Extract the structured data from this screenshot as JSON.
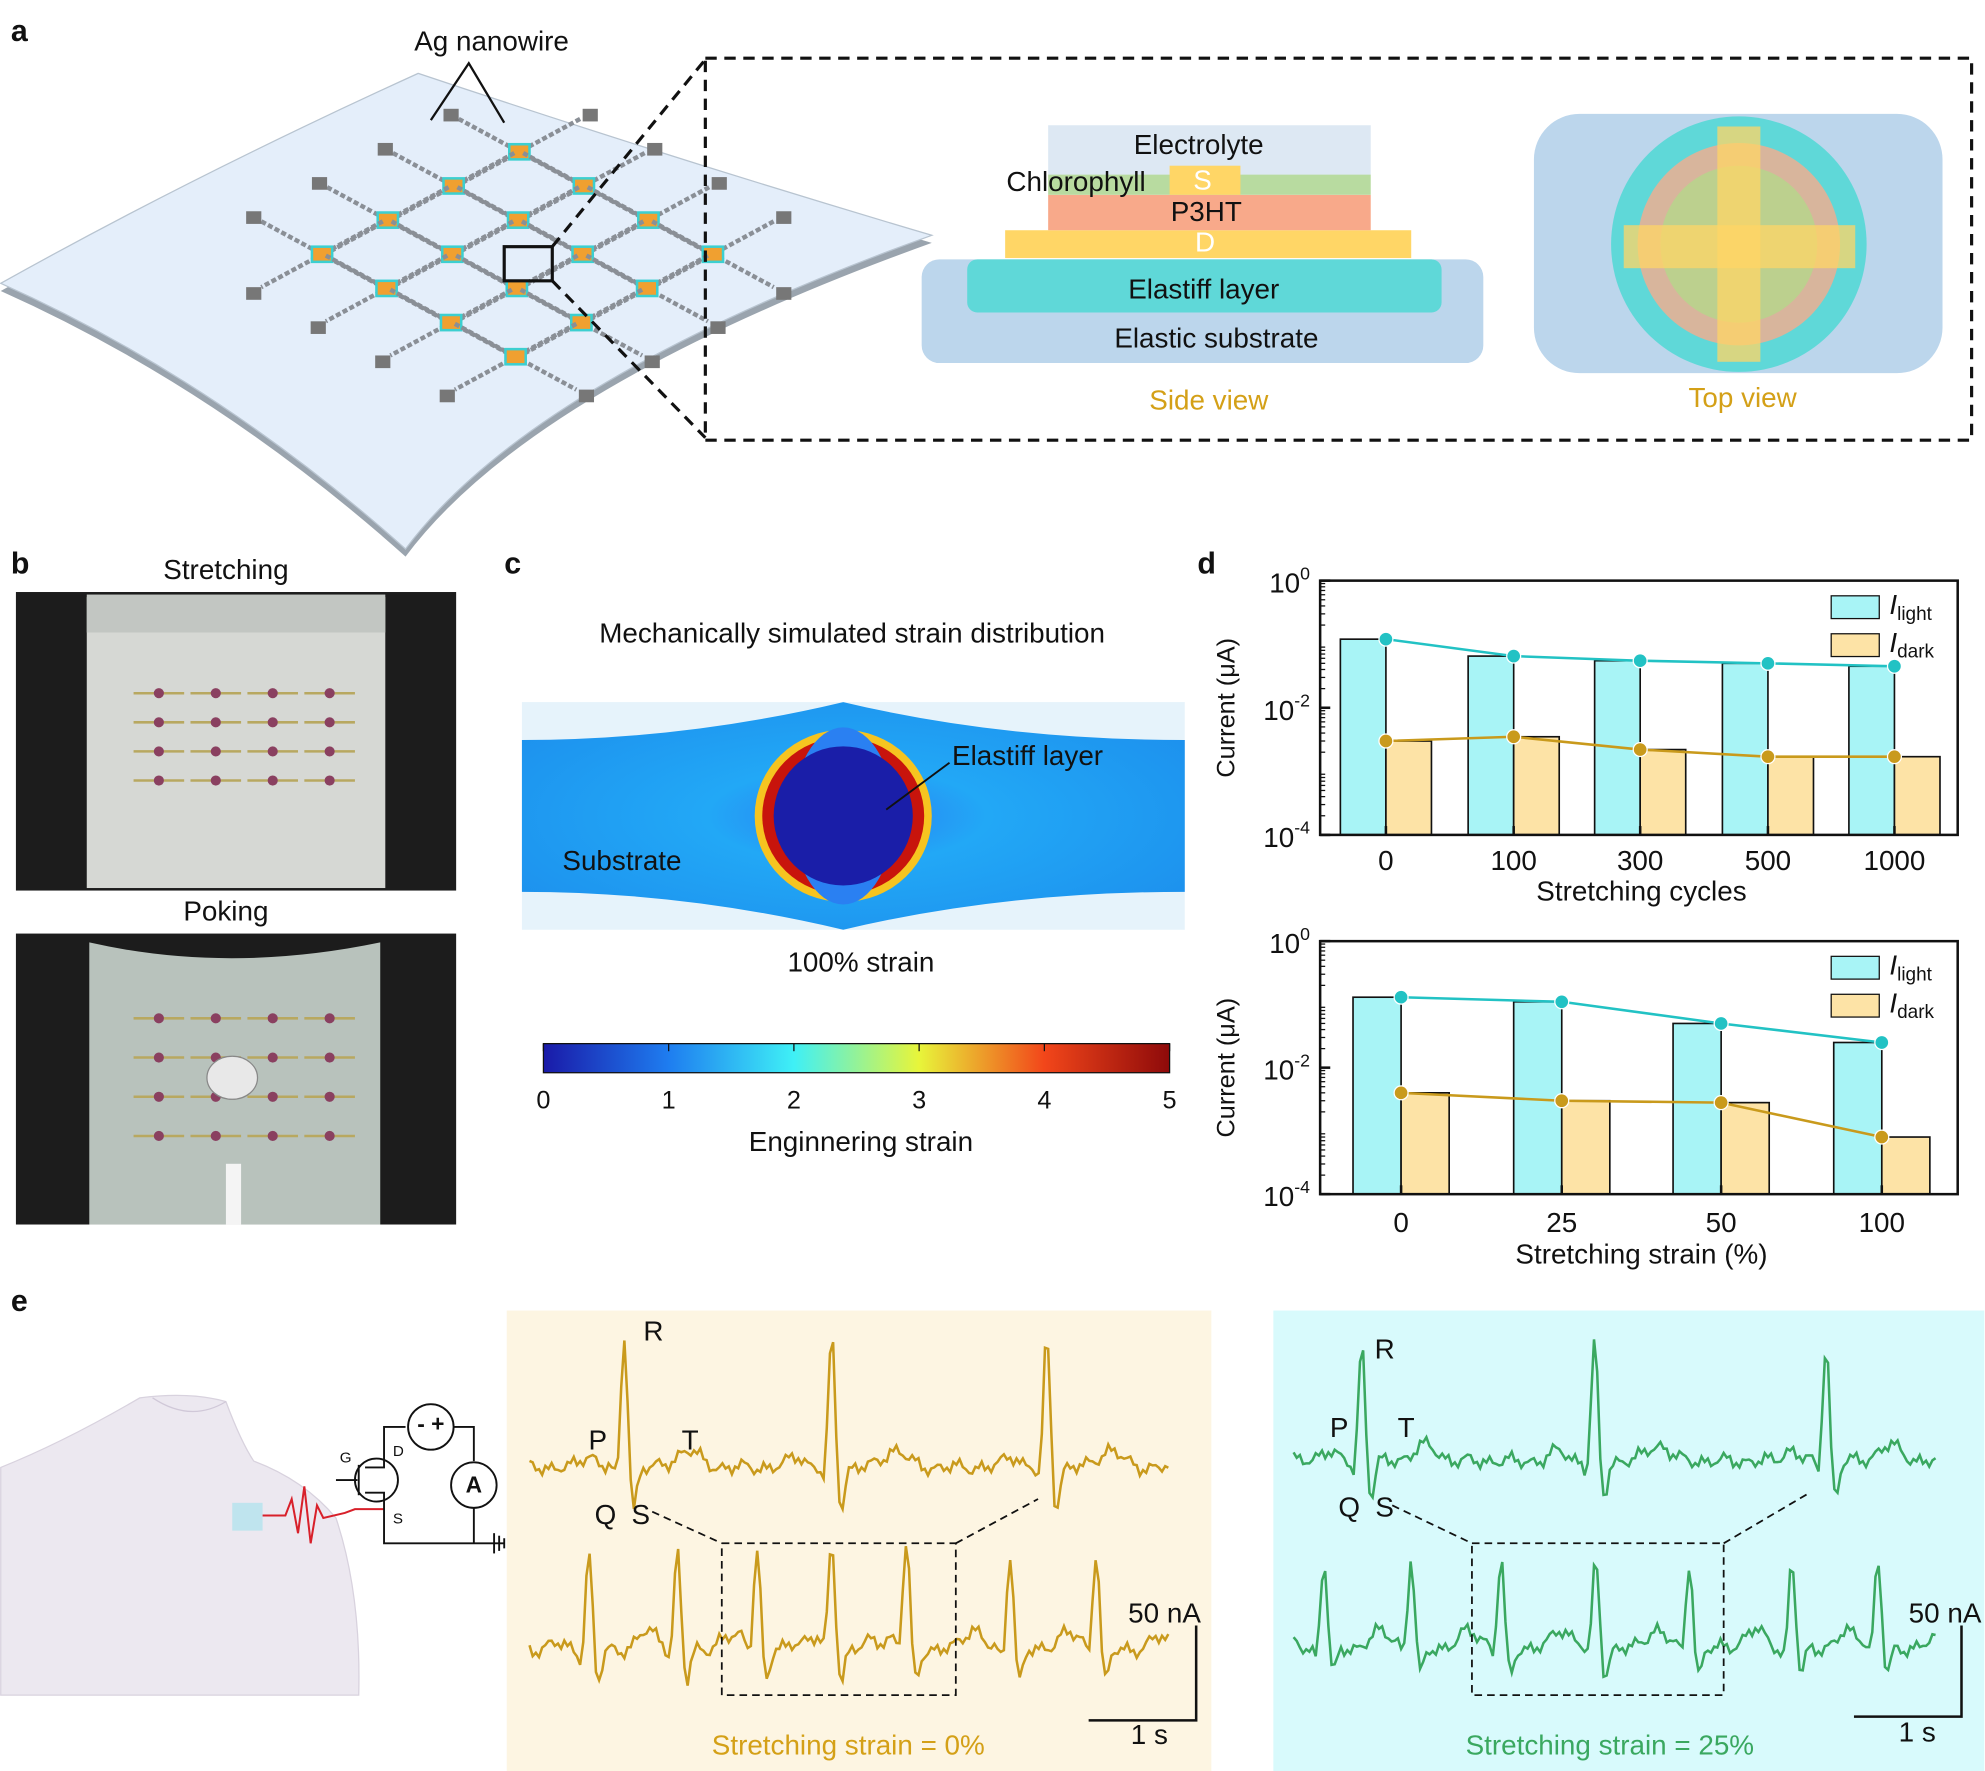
{
  "panel_labels": [
    "a",
    "b",
    "c",
    "d",
    "e"
  ],
  "panel_a": {
    "nanowire_label": "Ag nanowire",
    "layers": {
      "electrolyte": "Electrolyte",
      "chlorophyll": "Chlorophyll",
      "source": "S",
      "p3ht": "P3HT",
      "drain": "D",
      "elastiff": "Elastiff layer",
      "substrate": "Elastic substrate"
    },
    "side_view": "Side view",
    "top_view": "Top view"
  },
  "panel_b": {
    "stretching": "Stretching",
    "poking": "Poking"
  },
  "panel_c": {
    "title": "Mechanically simulated strain distribution",
    "elastiff_label": "Elastiff layer",
    "substrate_label": "Substrate",
    "strain": "100% strain",
    "colorbar": {
      "ticks": [
        0,
        1,
        2,
        3,
        4,
        5
      ],
      "label": "Enginnering strain"
    }
  },
  "chart_data": [
    {
      "type": "bar",
      "xlabel": "Stretching cycles",
      "ylabel": "Current (μA)",
      "categories": [
        "0",
        "100",
        "300",
        "500",
        "1000"
      ],
      "log_y": true,
      "ylim": [
        0.0001,
        1
      ],
      "yticks": [
        {
          "value": 1,
          "label": "10^0"
        },
        {
          "value": 0.01,
          "label": "10^-2"
        },
        {
          "value": 0.0001,
          "label": "10^-4"
        }
      ],
      "legend": "upper right",
      "series": [
        {
          "name": "I_light",
          "color": "#a8f4f6",
          "line_color": "#22c2c4",
          "values": [
            0.12,
            0.065,
            0.055,
            0.05,
            0.045
          ]
        },
        {
          "name": "I_dark",
          "color": "#fde3a6",
          "line_color": "#c99a1c",
          "values": [
            0.003,
            0.0035,
            0.0022,
            0.0017,
            0.0017
          ]
        }
      ]
    },
    {
      "type": "bar",
      "xlabel": "Stretching strain (%)",
      "ylabel": "Current (μA)",
      "categories": [
        "0",
        "25",
        "50",
        "100"
      ],
      "log_y": true,
      "ylim": [
        0.0001,
        1
      ],
      "yticks": [
        {
          "value": 1,
          "label": "10^0"
        },
        {
          "value": 0.01,
          "label": "10^-2"
        },
        {
          "value": 0.0001,
          "label": "10^-4"
        }
      ],
      "legend": "upper right",
      "series": [
        {
          "name": "I_light",
          "color": "#a8f4f6",
          "line_color": "#22c2c4",
          "values": [
            0.13,
            0.11,
            0.05,
            0.025
          ]
        },
        {
          "name": "I_dark",
          "color": "#fde3a6",
          "line_color": "#c99a1c",
          "values": [
            0.004,
            0.003,
            0.0028,
            0.0008
          ]
        }
      ]
    }
  ],
  "panel_e": {
    "circuit": {
      "gate": "G",
      "drain": "D",
      "source": "S",
      "ammeter": "A",
      "supply": "- +"
    },
    "ecg_0": {
      "waves": [
        "R",
        "P",
        "T",
        "Q",
        "S"
      ],
      "scale_current": "50 nA",
      "scale_time": "1 s",
      "caption": "Stretching strain = 0%"
    },
    "ecg_25": {
      "waves": [
        "R",
        "P",
        "T",
        "Q",
        "S"
      ],
      "scale_current": "50 nA",
      "scale_time": "1 s",
      "caption": "Stretching strain = 25%"
    }
  }
}
